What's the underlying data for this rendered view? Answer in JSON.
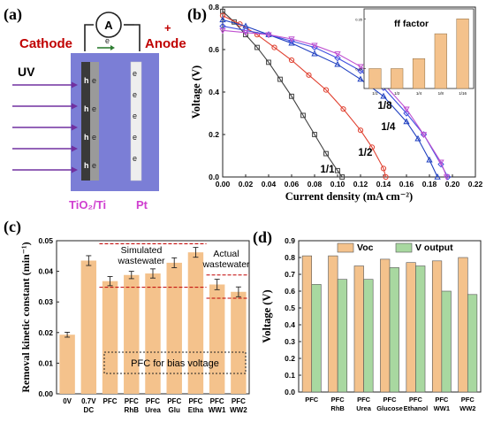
{
  "panels": {
    "a": {
      "label": "(a)"
    },
    "b": {
      "label": "(b)"
    },
    "c": {
      "label": "(c)"
    },
    "d": {
      "label": "(d)"
    }
  },
  "schematic": {
    "cathode_label": "Cathode",
    "anode_label": "Anode",
    "minus_sign": "-",
    "plus_sign": "+",
    "ammeter_label": "A",
    "wire_electron_label": "e",
    "uv_label": "UV",
    "left_electrode_label": "TiO₂/Ti",
    "right_electrode_label": "Pt",
    "hole_label": "h",
    "electron_label": "e",
    "colors": {
      "cell": "#7b7ed6",
      "cathode_text": "#c00000",
      "electrode_label": "#d040d0",
      "uv_arrows": "#7030a0"
    }
  },
  "chart_data": [
    {
      "panel": "b",
      "type": "line",
      "xlabel": "Current density (mA cm⁻²)",
      "ylabel": "Voltage (V)",
      "xlim": [
        0,
        0.22
      ],
      "ylim": [
        0,
        0.8
      ],
      "xticks": [
        "0.00",
        "0.02",
        "0.04",
        "0.06",
        "0.08",
        "0.10",
        "0.12",
        "0.14",
        "0.16",
        "0.18",
        "0.20",
        "0.22"
      ],
      "yticks": [
        "0.0",
        "0.2",
        "0.4",
        "0.6",
        "0.8"
      ],
      "series": [
        {
          "name": "1/1",
          "color": "#404040",
          "x": [
            0,
            0.01,
            0.02,
            0.03,
            0.04,
            0.05,
            0.06,
            0.07,
            0.08,
            0.09,
            0.1,
            0.104
          ],
          "y": [
            0.78,
            0.73,
            0.67,
            0.61,
            0.54,
            0.46,
            0.38,
            0.29,
            0.2,
            0.11,
            0.03,
            0
          ]
        },
        {
          "name": "1/2",
          "color": "#e04030",
          "x": [
            0,
            0.015,
            0.03,
            0.045,
            0.06,
            0.075,
            0.09,
            0.105,
            0.12,
            0.13,
            0.14,
            0.142
          ],
          "y": [
            0.76,
            0.72,
            0.67,
            0.61,
            0.55,
            0.48,
            0.41,
            0.32,
            0.22,
            0.14,
            0.04,
            0
          ]
        },
        {
          "name": "1/4",
          "color": "#2040c0",
          "x": [
            0,
            0.02,
            0.04,
            0.06,
            0.08,
            0.1,
            0.12,
            0.14,
            0.16,
            0.17,
            0.18,
            0.187
          ],
          "y": [
            0.74,
            0.71,
            0.67,
            0.63,
            0.58,
            0.53,
            0.46,
            0.38,
            0.26,
            0.18,
            0.08,
            0
          ]
        },
        {
          "name": "1/8",
          "color": "#4050e0",
          "x": [
            0,
            0.02,
            0.04,
            0.06,
            0.08,
            0.1,
            0.12,
            0.14,
            0.16,
            0.175,
            0.19,
            0.196
          ],
          "y": [
            0.71,
            0.69,
            0.67,
            0.64,
            0.61,
            0.56,
            0.5,
            0.42,
            0.3,
            0.2,
            0.06,
            0
          ]
        },
        {
          "name": "1/16",
          "color": "#c050d0",
          "x": [
            0,
            0.02,
            0.04,
            0.06,
            0.08,
            0.1,
            0.12,
            0.14,
            0.16,
            0.175,
            0.19,
            0.195
          ],
          "y": [
            0.69,
            0.68,
            0.67,
            0.65,
            0.62,
            0.58,
            0.52,
            0.44,
            0.32,
            0.2,
            0.07,
            0
          ]
        }
      ],
      "inset": {
        "type": "bar",
        "title": "ff factor",
        "categories": [
          "1/1",
          "1/2",
          "1/4",
          "1/8",
          "1/16"
        ],
        "values": [
          0.3,
          0.3,
          0.31,
          0.335,
          0.35
        ],
        "ylim": [
          0.28,
          0.36
        ],
        "yticks": [
          "0.30",
          "0.35"
        ],
        "color": "#f4c28c"
      }
    },
    {
      "panel": "c",
      "type": "bar",
      "ylabel": "Removal kinetic constant (min⁻¹)",
      "ylim": [
        0,
        0.05
      ],
      "yticks": [
        "0.00",
        "0.01",
        "0.02",
        "0.03",
        "0.04",
        "0.05"
      ],
      "categories": [
        "0V",
        "0.7V DC",
        "PFC",
        "PFC RhB",
        "PFC Urea",
        "PFC Glu",
        "PFC Etha",
        "PFC WW1",
        "PFC WW2"
      ],
      "values": [
        0.0193,
        0.0435,
        0.0368,
        0.0388,
        0.0393,
        0.0428,
        0.0462,
        0.0357,
        0.0333
      ],
      "errors": [
        0.0008,
        0.0016,
        0.0015,
        0.0012,
        0.0015,
        0.0016,
        0.0016,
        0.0017,
        0.0016
      ],
      "color": "#f4c28c",
      "annotations": {
        "simulated": "Simulated wastewater",
        "actual": "Actual wastewater",
        "box_text": "PFC for bias voltage"
      },
      "ref_lines": [
        0.049,
        0.0348,
        0.0388,
        0.0312
      ]
    },
    {
      "panel": "d",
      "type": "bar",
      "ylabel": "Voltage (V)",
      "ylim": [
        0,
        0.9
      ],
      "yticks": [
        "0.0",
        "0.1",
        "0.2",
        "0.3",
        "0.4",
        "0.5",
        "0.6",
        "0.7",
        "0.8",
        "0.9"
      ],
      "categories": [
        "PFC",
        "PFC RhB",
        "PFC Urea",
        "PFC Glucose",
        "PFC Ethanol",
        "PFC WW1",
        "PFC WW2"
      ],
      "series": [
        {
          "name": "Voc",
          "color": "#f4c28c",
          "values": [
            0.81,
            0.81,
            0.75,
            0.79,
            0.77,
            0.78,
            0.8
          ]
        },
        {
          "name": "V output",
          "color": "#a8d8a0",
          "values": [
            0.64,
            0.67,
            0.67,
            0.74,
            0.75,
            0.6,
            0.58
          ]
        }
      ]
    }
  ]
}
